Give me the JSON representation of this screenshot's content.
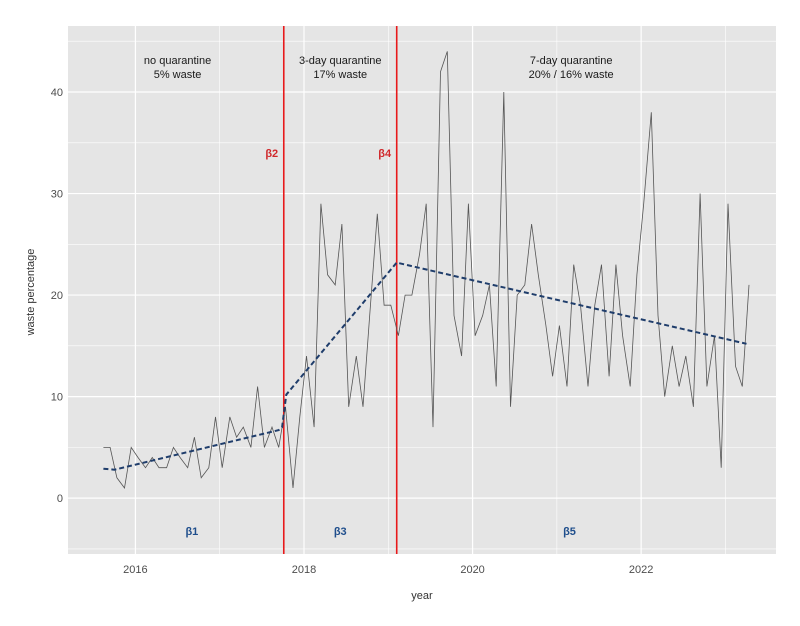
{
  "chart_data": {
    "type": "line",
    "title": "",
    "xlabel": "year",
    "ylabel": "waste percentage",
    "xlim": [
      2015.2,
      2023.6
    ],
    "ylim": [
      -5.5,
      46.5
    ],
    "grid": true,
    "x_ticks": [
      2016,
      2018,
      2020,
      2022
    ],
    "x_tick_labels": [
      "2016",
      "2018",
      "2020",
      "2022"
    ],
    "y_ticks": [
      0,
      10,
      20,
      30,
      40
    ],
    "y_tick_labels": [
      "0",
      "10",
      "20",
      "30",
      "40"
    ],
    "colors": {
      "panel": "#e5e5e5",
      "grid": "#ffffff",
      "series": "#555555",
      "trend": "#1f3d6b",
      "breakpoint": "#e8191b",
      "beta_breakpoint": "#d0282b",
      "beta_segment": "#1f4e8c"
    },
    "series": [
      {
        "x": [
          2015.62,
          2015.7,
          2015.78,
          2015.87,
          2015.95,
          2016.03,
          2016.12,
          2016.2,
          2016.28,
          2016.37,
          2016.45,
          2016.53,
          2016.62,
          2016.7,
          2016.78,
          2016.87,
          2016.95,
          2017.03,
          2017.12,
          2017.2,
          2017.28,
          2017.37,
          2017.45,
          2017.53,
          2017.62,
          2017.7,
          2017.78,
          2017.87,
          2017.95,
          2018.03,
          2018.12,
          2018.2,
          2018.28,
          2018.37,
          2018.45,
          2018.53,
          2018.62,
          2018.7,
          2018.78,
          2018.87,
          2018.95,
          2019.03,
          2019.12,
          2019.2,
          2019.28,
          2019.37,
          2019.45,
          2019.53,
          2019.62,
          2019.7,
          2019.78,
          2019.87,
          2019.95,
          2020.03,
          2020.12,
          2020.2,
          2020.28,
          2020.37,
          2020.45,
          2020.53,
          2020.62,
          2020.7,
          2020.78,
          2020.87,
          2020.95,
          2021.03,
          2021.12,
          2021.2,
          2021.28,
          2021.37,
          2021.45,
          2021.53,
          2021.62,
          2021.7,
          2021.78,
          2021.87,
          2021.95,
          2022.03,
          2022.12,
          2022.2,
          2022.28,
          2022.37,
          2022.45,
          2022.53,
          2022.62,
          2022.7,
          2022.78,
          2022.87,
          2022.95,
          2023.03,
          2023.12,
          2023.2,
          2023.28
        ],
        "y": [
          5,
          5,
          2,
          1,
          5,
          4,
          3,
          4,
          3,
          3,
          5,
          4,
          3,
          6,
          2,
          3,
          8,
          3,
          8,
          6,
          7,
          5,
          11,
          5,
          7,
          5,
          9,
          1,
          8,
          14,
          7,
          29,
          22,
          21,
          27,
          9,
          14,
          9,
          18,
          28,
          19,
          19,
          16,
          20,
          20,
          24,
          29,
          7,
          42,
          44,
          18,
          14,
          29,
          16,
          18,
          21,
          11,
          40,
          9,
          20,
          21,
          27,
          22,
          17,
          12,
          17,
          11,
          23,
          19,
          11,
          19,
          23,
          12,
          23,
          16,
          11,
          22,
          29,
          38,
          18,
          10,
          15,
          11,
          14,
          9,
          30,
          11,
          16,
          3,
          29,
          13,
          11,
          21
        ]
      }
    ],
    "trend": {
      "x": [
        2015.62,
        2015.75,
        2017.7,
        2017.74,
        2017.79,
        2019.1,
        2023.25
      ],
      "y": [
        2.9,
        2.8,
        6.7,
        7.0,
        10.2,
        23.2,
        15.2
      ]
    },
    "breakpoints": [
      {
        "x": 2017.76,
        "label": "β2"
      },
      {
        "x": 2019.1,
        "label": "β4"
      }
    ],
    "regions": [
      {
        "x": 2016.5,
        "line1": "no quarantine",
        "line2": "5% waste"
      },
      {
        "x": 2018.43,
        "line1": "3-day quarantine",
        "line2": "17% waste"
      },
      {
        "x": 2021.17,
        "line1": "7-day quarantine",
        "line2": "20% / 16% waste"
      }
    ],
    "segment_labels": [
      {
        "x": 2016.67,
        "label": "β1"
      },
      {
        "x": 2018.43,
        "label": "β3"
      },
      {
        "x": 2021.15,
        "label": "β5"
      }
    ]
  }
}
